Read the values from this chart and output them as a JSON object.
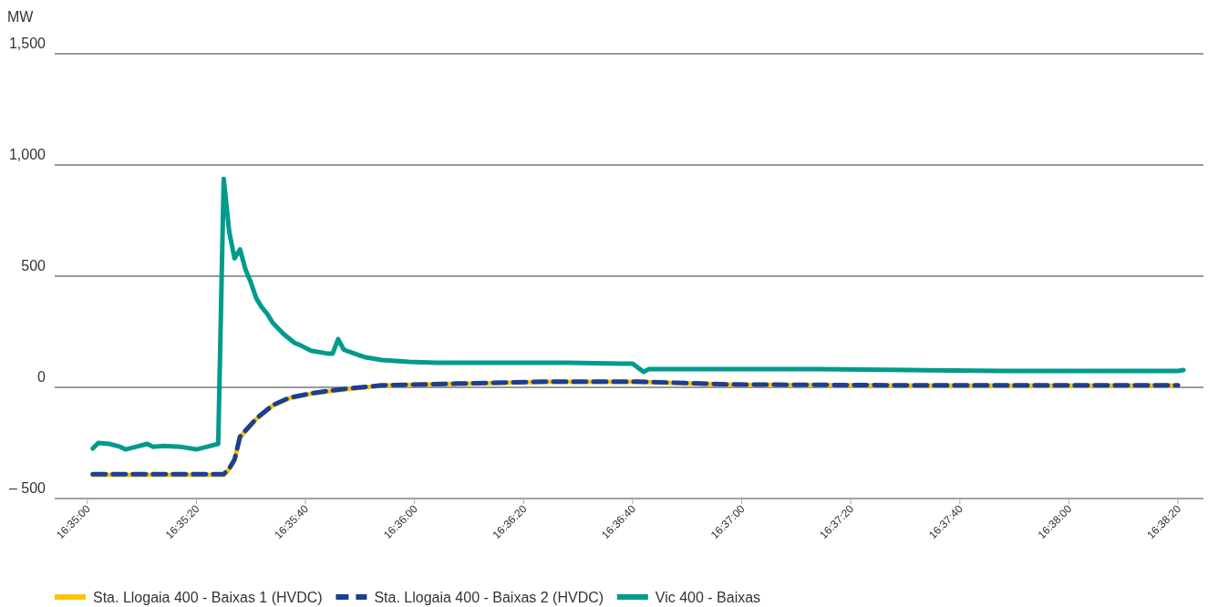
{
  "chart_data": {
    "type": "line",
    "ylabel": "MW",
    "xlim": [
      16.58167,
      16.64019
    ],
    "ylim": [
      -500,
      1500
    ],
    "yticks": [
      {
        "value": -500,
        "label": "– 500"
      },
      0,
      500,
      {
        "value": 1000,
        "label": "1,000"
      },
      {
        "value": 1500,
        "label": "1,500"
      }
    ],
    "xticks": [
      {
        "value": 16.58333,
        "label": "16:35:00"
      },
      {
        "value": 16.58889,
        "label": "16:35:20"
      },
      {
        "value": 16.59444,
        "label": "16:35:40"
      },
      {
        "value": 16.6,
        "label": "16:36:00"
      },
      {
        "value": 16.60556,
        "label": "16:36:20"
      },
      {
        "value": 16.61111,
        "label": "16:36:40"
      },
      {
        "value": 16.61667,
        "label": "16:37:00"
      },
      {
        "value": 16.62222,
        "label": "16:37:20"
      },
      {
        "value": 16.62778,
        "label": "16:37:40"
      },
      {
        "value": 16.63333,
        "label": "16:38:00"
      },
      {
        "value": 16.63889,
        "label": "16:38:20"
      }
    ],
    "grid": "y",
    "legend": "bottom left",
    "series": [
      {
        "name": "Sta. Llogaia 400 - Baixas 1 (HVDC)",
        "color": "#fcc30b",
        "line_style": "solid",
        "x": [
          16.58361,
          16.58889,
          16.59028,
          16.59056,
          16.59083,
          16.59111,
          16.59194,
          16.59278,
          16.59361,
          16.59472,
          16.59611,
          16.5975,
          16.59833,
          16.60222,
          16.60667,
          16.61139,
          16.61611,
          16.62528,
          16.63889
        ],
        "values": [
          -393,
          -393,
          -393,
          -369,
          -328,
          -225,
          -143,
          -82,
          -49,
          -29,
          -12,
          0,
          8,
          16,
          25,
          25,
          12,
          8,
          8
        ]
      },
      {
        "name": "Sta. Llogaia 400 - Baixas 2 (HVDC)",
        "color": "#1c3f94",
        "line_style": "dashed",
        "x": [
          16.58361,
          16.58889,
          16.59028,
          16.59056,
          16.59083,
          16.59111,
          16.59194,
          16.59278,
          16.59361,
          16.59472,
          16.59611,
          16.5975,
          16.59833,
          16.60222,
          16.60667,
          16.61139,
          16.61611,
          16.62528,
          16.63889
        ],
        "values": [
          -390,
          -390,
          -390,
          -365,
          -325,
          -222,
          -140,
          -80,
          -47,
          -27,
          -10,
          2,
          9,
          17,
          26,
          26,
          13,
          9,
          9
        ]
      },
      {
        "name": "Vic 400 - Baixas",
        "color": "#009b8c",
        "line_style": "solid",
        "x": [
          16.58361,
          16.58389,
          16.58444,
          16.585,
          16.58528,
          16.58583,
          16.58639,
          16.58667,
          16.58722,
          16.58806,
          16.58889,
          16.58944,
          16.59,
          16.59028,
          16.59056,
          16.59083,
          16.59111,
          16.59139,
          16.59167,
          16.59194,
          16.59222,
          16.5925,
          16.59278,
          16.59333,
          16.59389,
          16.59417,
          16.59472,
          16.59556,
          16.59583,
          16.59611,
          16.59639,
          16.59667,
          16.5975,
          16.59833,
          16.59972,
          16.60111,
          16.60389,
          16.60583,
          16.60778,
          16.61056,
          16.61111,
          16.61167,
          16.61194,
          16.61278,
          16.61611,
          16.62056,
          16.62528,
          16.63,
          16.63472,
          16.63889,
          16.63917
        ],
        "values": [
          -275,
          -250,
          -254,
          -267,
          -279,
          -267,
          -254,
          -267,
          -263,
          -267,
          -279,
          -267,
          -254,
          938,
          700,
          580,
          620,
          530,
          470,
          400,
          360,
          330,
          290,
          240,
          200,
          190,
          165,
          152,
          152,
          217,
          170,
          160,
          135,
          123,
          115,
          111,
          111,
          111,
          111,
          107,
          107,
          70,
          82,
          82,
          82,
          82,
          78,
          74,
          74,
          74,
          78
        ]
      }
    ]
  }
}
